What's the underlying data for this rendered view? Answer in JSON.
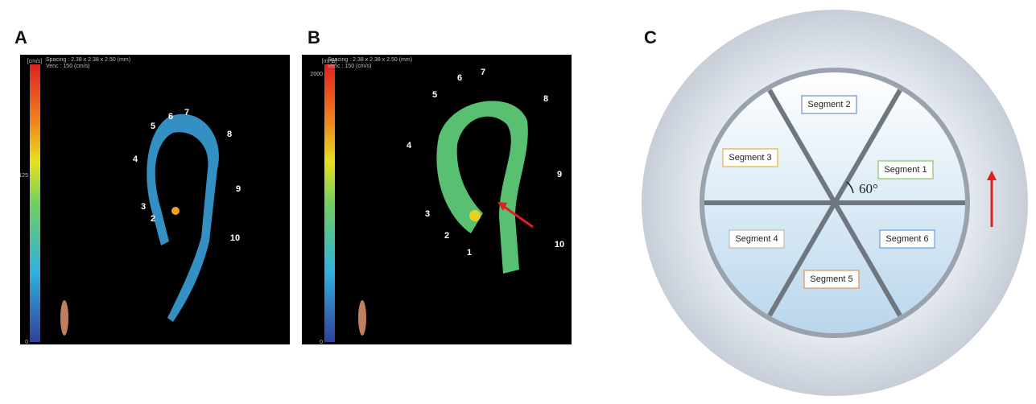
{
  "panel_labels": [
    "A",
    "B",
    "C"
  ],
  "panel_a": {
    "spacing": "Spacing : 2.38 x 2.38 x 2.50 (mm)",
    "venc": "Venc : 150 (cm/s)",
    "unit": "[cm/s]",
    "scale_ticks": [
      "125",
      "0"
    ],
    "plane_labels": [
      "2",
      "3",
      "4",
      "5",
      "6",
      "7",
      "8",
      "9",
      "10"
    ]
  },
  "panel_b": {
    "spacing": "Spacing : 2.38 x 2.38 x 2.50 (mm)",
    "venc": "Venc : 150 (cm/s)",
    "unit": "[mPa]",
    "scale_ticks": [
      "2000",
      "0"
    ],
    "plane_labels": [
      "1",
      "2",
      "3",
      "4",
      "5",
      "6",
      "7",
      "8",
      "9",
      "10"
    ]
  },
  "panel_c": {
    "segments": [
      "Segment 1",
      "Segment 2",
      "Segment 3",
      "Segment 4",
      "Segment 5",
      "Segment 6"
    ],
    "angle": "60°"
  }
}
